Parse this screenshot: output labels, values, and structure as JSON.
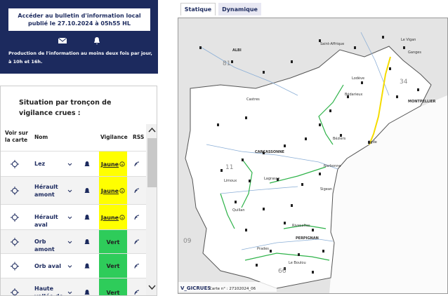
{
  "bulletin": {
    "link": "Accéder au bulletin d'information local publié le 27.10.2024 à 05h55 HL",
    "production": "Production de l'information au moins deux fois par jour, à 10h et 16h."
  },
  "table": {
    "title": "Situation par tronçon de vigilance crues :",
    "headers": [
      "Voir sur la carte",
      "Nom",
      "Vigilance",
      "RSS"
    ],
    "rows": [
      {
        "name": "Lez",
        "vigilance": "Jaune",
        "color": "#ffff00"
      },
      {
        "name": "Hérault amont",
        "vigilance": "Jaune",
        "color": "#ffff00"
      },
      {
        "name": "Hérault aval",
        "vigilance": "Jaune",
        "color": "#ffff00"
      },
      {
        "name": "Orb amont",
        "vigilance": "Vert",
        "color": "#2ecc5a"
      },
      {
        "name": "Orb aval",
        "vigilance": "Vert",
        "color": "#2ecc5a"
      },
      {
        "name": "Haute vallée de",
        "vigilance": "Vert",
        "color": "#2ecc5a"
      }
    ]
  },
  "tabs": [
    "Statique",
    "Dynamique"
  ],
  "map": {
    "labels": [
      "34",
      "81",
      "11",
      "66",
      "09",
      "ALBI",
      "Castres",
      "Saint-Affrique",
      "Le Vigan",
      "Ganges",
      "Lodève",
      "Bédarieux",
      "MONTPELLIER",
      "Béziers",
      "Agde",
      "CARCASSONNE",
      "Narbonne",
      "Limoux",
      "Lagrasse",
      "Sigean",
      "Quillan",
      "Rivesaltes",
      "PERPIGNAN",
      "Prades",
      "Le Boulou"
    ],
    "footer": [
      "V_GICRUES",
      "Carte n° : 27102024_06"
    ]
  }
}
